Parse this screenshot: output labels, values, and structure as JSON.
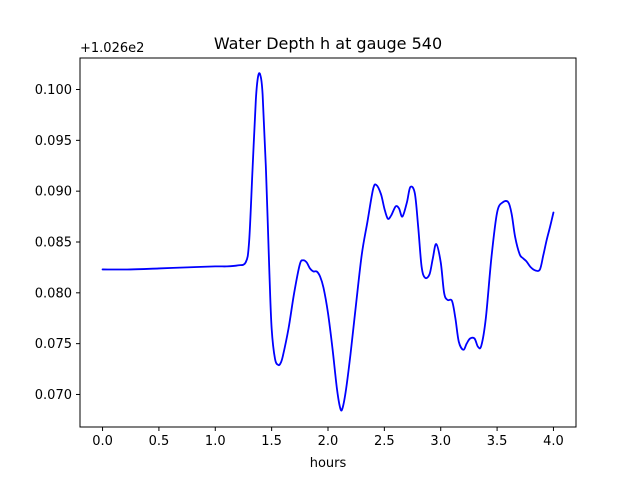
{
  "chart_data": {
    "type": "line",
    "title": "Water Depth h at gauge 540",
    "xlabel": "hours",
    "ylabel": "",
    "y_offset_label": "+1.026e2",
    "xlim": [
      -0.2,
      4.2
    ],
    "ylim": [
      0.0668,
      0.1031
    ],
    "x_ticks": [
      0.0,
      0.5,
      1.0,
      1.5,
      2.0,
      2.5,
      3.0,
      3.5,
      4.0
    ],
    "x_tick_labels": [
      "0.0",
      "0.5",
      "1.0",
      "1.5",
      "2.0",
      "2.5",
      "3.0",
      "3.5",
      "4.0"
    ],
    "y_ticks": [
      0.07,
      0.075,
      0.08,
      0.085,
      0.09,
      0.095,
      0.1
    ],
    "y_tick_labels": [
      "0.070",
      "0.075",
      "0.080",
      "0.085",
      "0.090",
      "0.095",
      "0.100"
    ],
    "grid": false,
    "series": [
      {
        "color": "#0000ff",
        "x": [
          0.0,
          0.25,
          0.5,
          0.75,
          1.0,
          1.1,
          1.2,
          1.27,
          1.3,
          1.33,
          1.36,
          1.38,
          1.4,
          1.42,
          1.45,
          1.48,
          1.5,
          1.53,
          1.56,
          1.58,
          1.6,
          1.65,
          1.7,
          1.75,
          1.78,
          1.81,
          1.84,
          1.87,
          1.9,
          1.93,
          1.96,
          2.0,
          2.04,
          2.08,
          2.11,
          2.13,
          2.16,
          2.2,
          2.25,
          2.3,
          2.35,
          2.4,
          2.43,
          2.47,
          2.5,
          2.53,
          2.56,
          2.6,
          2.63,
          2.66,
          2.7,
          2.73,
          2.77,
          2.8,
          2.83,
          2.86,
          2.9,
          2.93,
          2.96,
          3.0,
          3.03,
          3.06,
          3.1,
          3.13,
          3.16,
          3.2,
          3.23,
          3.26,
          3.3,
          3.33,
          3.36,
          3.4,
          3.45,
          3.5,
          3.55,
          3.6,
          3.63,
          3.66,
          3.7,
          3.73,
          3.76,
          3.8,
          3.84,
          3.88,
          3.91,
          3.94,
          3.97,
          4.0
        ],
        "y": [
          0.0823,
          0.0823,
          0.0824,
          0.0825,
          0.0826,
          0.0826,
          0.0827,
          0.083,
          0.085,
          0.092,
          0.099,
          0.1013,
          0.1014,
          0.0995,
          0.092,
          0.082,
          0.0765,
          0.0735,
          0.0729,
          0.0731,
          0.0738,
          0.0765,
          0.08,
          0.0828,
          0.0832,
          0.083,
          0.0824,
          0.0821,
          0.0821,
          0.0816,
          0.0805,
          0.078,
          0.0745,
          0.0705,
          0.0686,
          0.0687,
          0.0705,
          0.074,
          0.079,
          0.0838,
          0.087,
          0.0902,
          0.0906,
          0.0897,
          0.0883,
          0.0873,
          0.0876,
          0.0885,
          0.0883,
          0.0875,
          0.0889,
          0.0904,
          0.0898,
          0.0865,
          0.0826,
          0.0815,
          0.0818,
          0.0834,
          0.0848,
          0.083,
          0.08,
          0.0793,
          0.0792,
          0.0775,
          0.0752,
          0.0744,
          0.075,
          0.0755,
          0.0755,
          0.0747,
          0.0748,
          0.0775,
          0.0835,
          0.0879,
          0.0889,
          0.0889,
          0.0877,
          0.0855,
          0.0838,
          0.0834,
          0.0831,
          0.0825,
          0.0822,
          0.0823,
          0.0837,
          0.0852,
          0.0865,
          0.0879
        ]
      }
    ]
  }
}
